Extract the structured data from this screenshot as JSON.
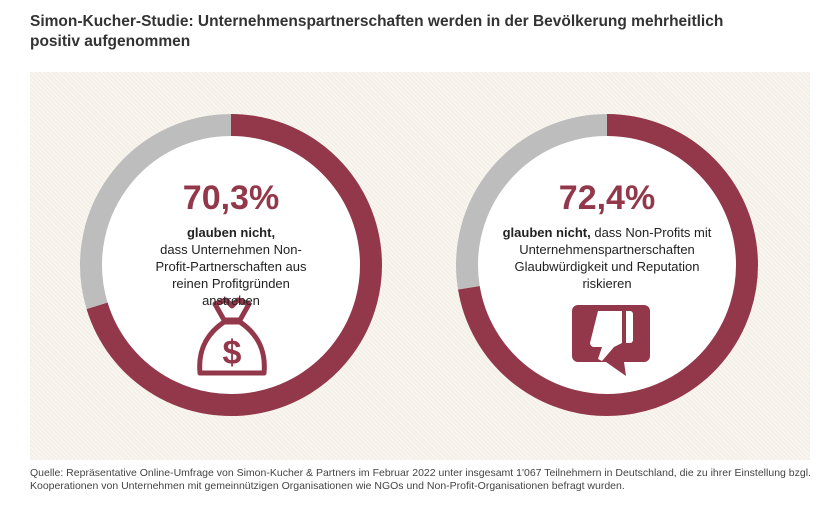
{
  "title": "Simon-Kucher-Studie: Unternehmenspartnerschaften werden in der Bevölkerung mehrheitlich positiv aufgenommen",
  "colors": {
    "accent": "#93374a",
    "remainder": "#bdbdbd",
    "background": "#f4f0e7"
  },
  "chart_data": [
    {
      "type": "pie",
      "variant": "donut",
      "values": [
        70.3,
        29.7
      ],
      "label": "70,3%",
      "text_bold": "glauben nicht,",
      "text": "dass Unternehmen Non-Profit-Partnerschaften aus reinen Profitgründen anstreben",
      "icon": "money-bag-icon"
    },
    {
      "type": "pie",
      "variant": "donut",
      "values": [
        72.4,
        27.6
      ],
      "label": "72,4%",
      "text_bold": "glauben nicht,",
      "text": "dass Non-Profits mit Unternehmenspartnerschaften Glaubwürdigkeit und Reputation riskieren",
      "icon": "thumbs-down-speech-bubble-icon"
    }
  ],
  "source": "Quelle: Repräsentative Online-Umfrage von Simon-Kucher & Partners im Februar 2022 unter insgesamt 1'067 Teilnehmern in Deutschland, die zu ihrer Einstellung bzgl. Kooperationen von Unternehmen mit gemeinnützigen Organisationen wie NGOs und Non-Profit-Organisationen befragt wurden."
}
